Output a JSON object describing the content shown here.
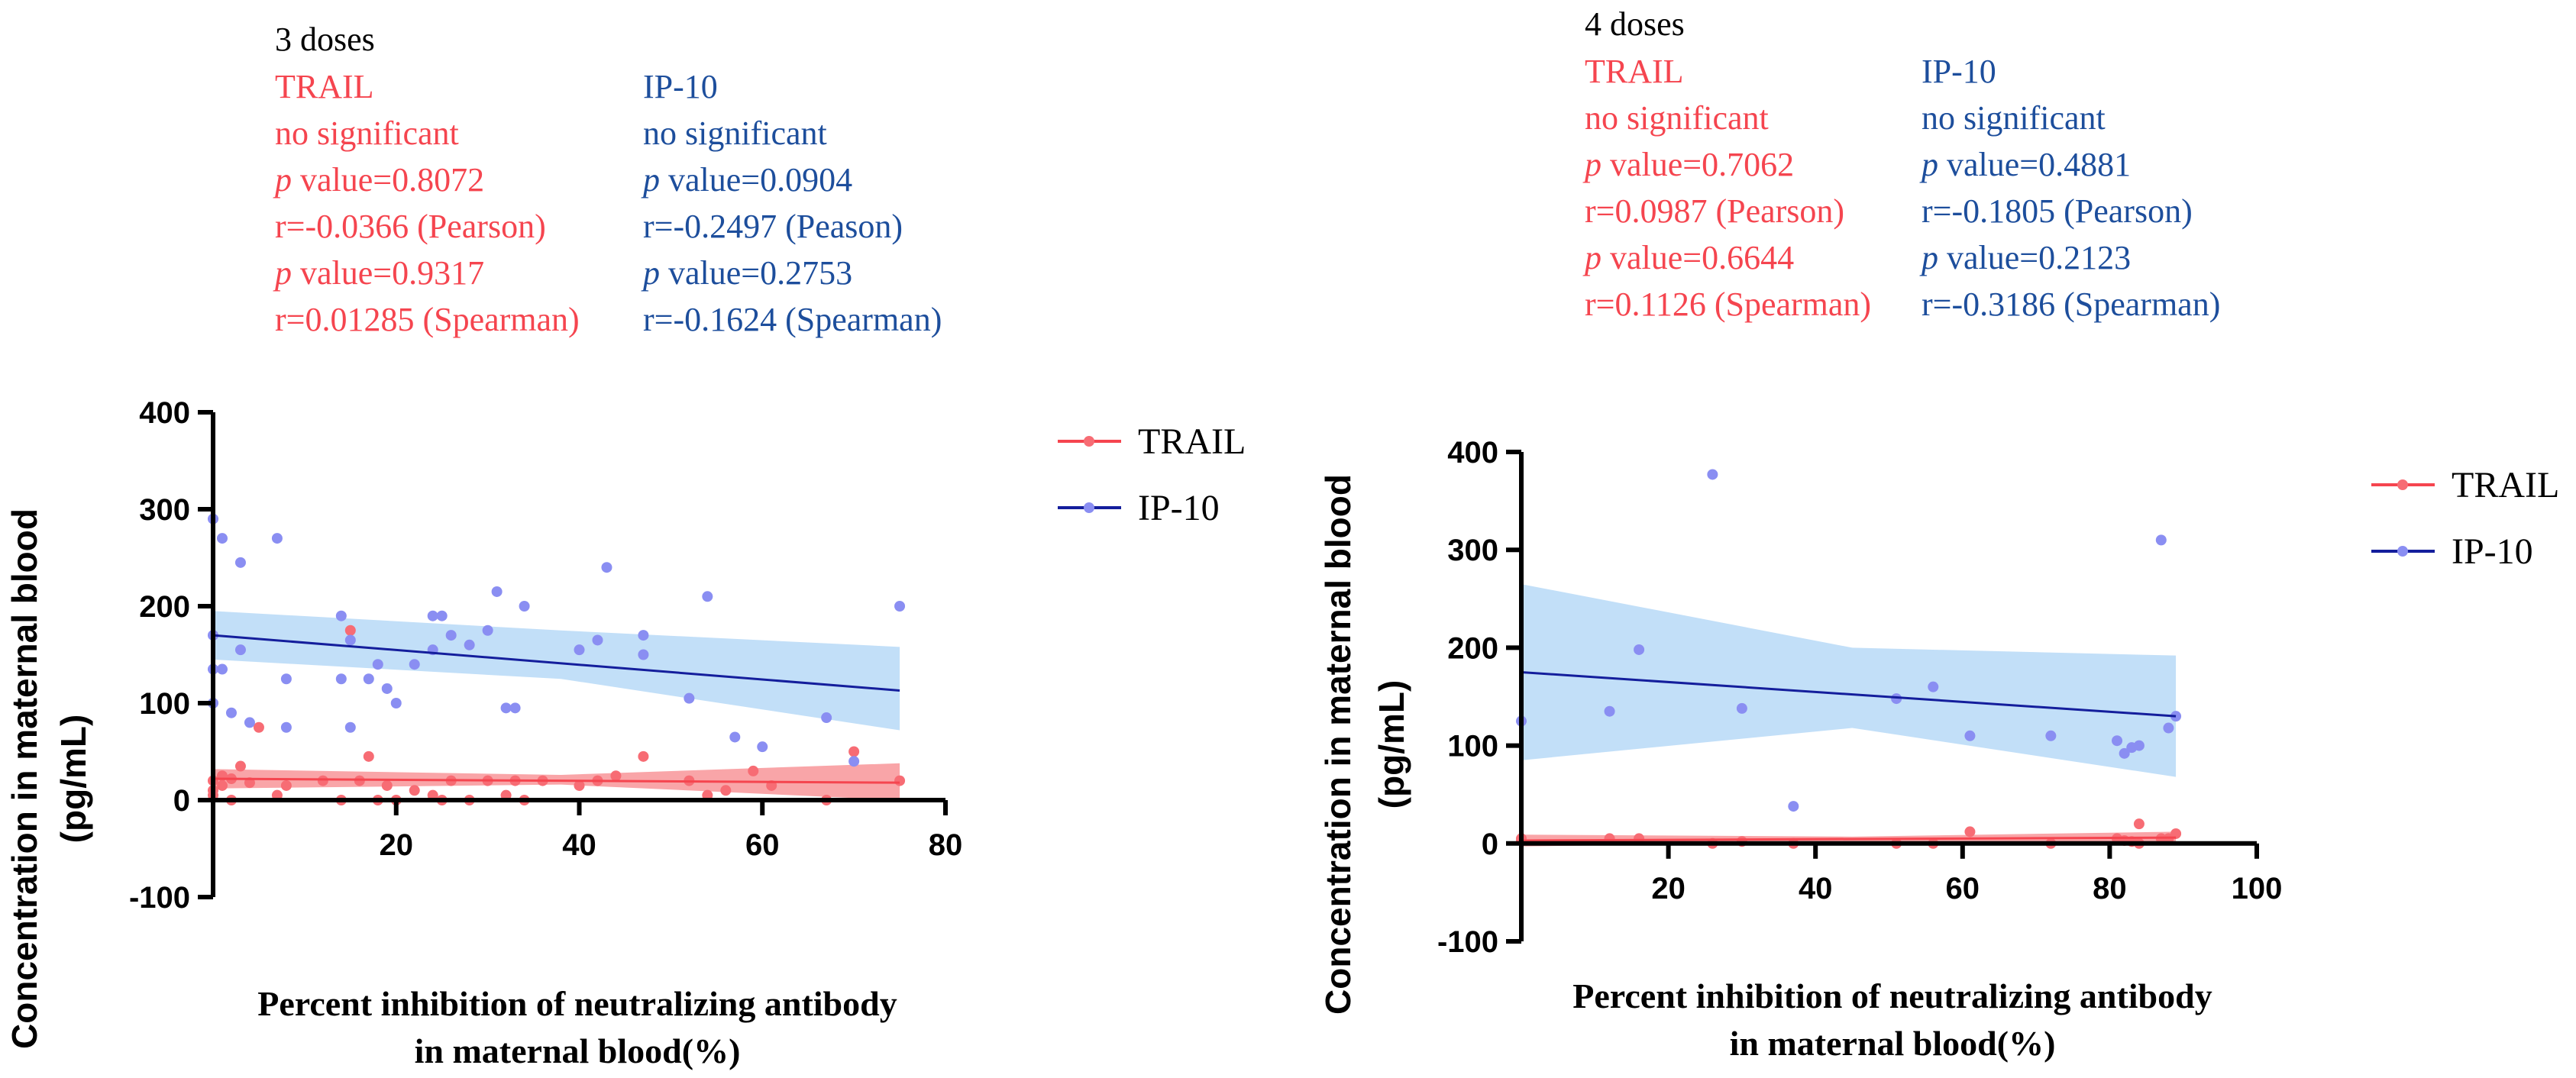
{
  "colors": {
    "trail": "#f5454f",
    "ip10": "#1d4e9c",
    "trail_point": "#f76c74",
    "ip10_point": "#8a8ef2",
    "trail_band": "#f78e92",
    "ip10_band": "#b7d9f7",
    "ip10_line": "#141e9c"
  },
  "legend": {
    "trail": "TRAIL",
    "ip10": "IP-10"
  },
  "chart_data": [
    {
      "type": "scatter",
      "title": "3 doses",
      "ylabel_line1": "Concentration in maternal blood",
      "ylabel_line2": "(pg/mL)",
      "xlabel_line1": "Percent inhibition of neutralizing antibody",
      "xlabel_line2": "in maternal blood(%)",
      "xlim": [
        0,
        80
      ],
      "ylim": [
        -100,
        400
      ],
      "xticks": [
        20,
        40,
        60,
        80
      ],
      "yticks": [
        -100,
        0,
        100,
        200,
        300,
        400
      ],
      "stats": {
        "trail": {
          "name": "TRAIL",
          "significance": "no significant",
          "p_pearson": "value=0.8072",
          "r_pearson": "r=-0.0366 (Pearson)",
          "p_spearman": "value=0.9317",
          "r_spearman": "r=0.01285 (Spearman)"
        },
        "ip10": {
          "name": "IP-10",
          "significance": "no significant",
          "p_pearson": "value=0.0904",
          "r_pearson": "r=-0.2497 (Peason)",
          "p_spearman": "value=0.2753",
          "r_spearman": "r=-0.1624 (Spearman)"
        }
      },
      "series": [
        {
          "name": "TRAIL",
          "points": [
            [
              0,
              20
            ],
            [
              0,
              5
            ],
            [
              0,
              10
            ],
            [
              1,
              15
            ],
            [
              1,
              25
            ],
            [
              2,
              0
            ],
            [
              2,
              22
            ],
            [
              3,
              35
            ],
            [
              4,
              18
            ],
            [
              5,
              75
            ],
            [
              7,
              5
            ],
            [
              8,
              15
            ],
            [
              12,
              20
            ],
            [
              14,
              0
            ],
            [
              15,
              175
            ],
            [
              16,
              20
            ],
            [
              17,
              45
            ],
            [
              18,
              0
            ],
            [
              19,
              15
            ],
            [
              20,
              0
            ],
            [
              22,
              10
            ],
            [
              24,
              5
            ],
            [
              25,
              0
            ],
            [
              26,
              20
            ],
            [
              28,
              0
            ],
            [
              30,
              20
            ],
            [
              32,
              5
            ],
            [
              33,
              20
            ],
            [
              34,
              0
            ],
            [
              36,
              20
            ],
            [
              40,
              15
            ],
            [
              42,
              20
            ],
            [
              44,
              25
            ],
            [
              47,
              45
            ],
            [
              52,
              20
            ],
            [
              54,
              5
            ],
            [
              56,
              10
            ],
            [
              59,
              30
            ],
            [
              61,
              15
            ],
            [
              67,
              0
            ],
            [
              70,
              50
            ],
            [
              75,
              20
            ]
          ],
          "fit": [
            [
              0,
              22
            ],
            [
              75,
              18
            ]
          ],
          "band_upper": [
            [
              0,
              32
            ],
            [
              38,
              26
            ],
            [
              75,
              38
            ]
          ],
          "band_lower": [
            [
              0,
              12
            ],
            [
              38,
              16
            ],
            [
              75,
              0
            ]
          ]
        },
        {
          "name": "IP-10",
          "points": [
            [
              0,
              290
            ],
            [
              0,
              170
            ],
            [
              0,
              135
            ],
            [
              1,
              135
            ],
            [
              0,
              100
            ],
            [
              1,
              270
            ],
            [
              2,
              90
            ],
            [
              3,
              245
            ],
            [
              3,
              155
            ],
            [
              4,
              80
            ],
            [
              7,
              270
            ],
            [
              8,
              125
            ],
            [
              8,
              75
            ],
            [
              14,
              125
            ],
            [
              14,
              190
            ],
            [
              15,
              75
            ],
            [
              15,
              165
            ],
            [
              17,
              125
            ],
            [
              18,
              140
            ],
            [
              19,
              115
            ],
            [
              20,
              100
            ],
            [
              22,
              140
            ],
            [
              24,
              155
            ],
            [
              24,
              190
            ],
            [
              25,
              190
            ],
            [
              26,
              170
            ],
            [
              28,
              160
            ],
            [
              30,
              175
            ],
            [
              31,
              215
            ],
            [
              32,
              95
            ],
            [
              33,
              95
            ],
            [
              34,
              200
            ],
            [
              40,
              155
            ],
            [
              42,
              165
            ],
            [
              43,
              240
            ],
            [
              47,
              170
            ],
            [
              47,
              150
            ],
            [
              52,
              105
            ],
            [
              54,
              210
            ],
            [
              57,
              65
            ],
            [
              60,
              55
            ],
            [
              67,
              85
            ],
            [
              70,
              40
            ],
            [
              75,
              200
            ]
          ],
          "fit": [
            [
              0,
              170
            ],
            [
              75,
              113
            ]
          ],
          "band_upper": [
            [
              0,
              195
            ],
            [
              38,
              175
            ],
            [
              75,
              158
            ]
          ],
          "band_lower": [
            [
              0,
              145
            ],
            [
              38,
              125
            ],
            [
              75,
              72
            ]
          ]
        }
      ]
    },
    {
      "type": "scatter",
      "title": "4 doses",
      "ylabel_line1": "Concentration in maternal blood",
      "ylabel_line2": "(pg/mL)",
      "xlabel_line1": "Percent inhibition of neutralizing antibody",
      "xlabel_line2": "in maternal blood(%)",
      "xlim": [
        0,
        100
      ],
      "ylim": [
        -100,
        400
      ],
      "xticks": [
        20,
        40,
        60,
        80,
        100
      ],
      "yticks": [
        -100,
        0,
        100,
        200,
        300,
        400
      ],
      "stats": {
        "trail": {
          "name": "TRAIL",
          "significance": "no significant",
          "p_pearson": "value=0.7062",
          "r_pearson": "r=0.0987 (Pearson)",
          "p_spearman": "value=0.6644",
          "r_spearman": "r=0.1126 (Spearman)"
        },
        "ip10": {
          "name": "IP-10",
          "significance": "no significant",
          "p_pearson": "value=0.4881",
          "r_pearson": "r=-0.1805 (Pearson)",
          "p_spearman": "value=0.2123",
          "r_spearman": "r=-0.3186 (Spearman)"
        }
      },
      "series": [
        {
          "name": "TRAIL",
          "points": [
            [
              0,
              5
            ],
            [
              0,
              3
            ],
            [
              12,
              5
            ],
            [
              16,
              5
            ],
            [
              26,
              0
            ],
            [
              30,
              2
            ],
            [
              37,
              0
            ],
            [
              51,
              0
            ],
            [
              56,
              0
            ],
            [
              61,
              12
            ],
            [
              72,
              0
            ],
            [
              81,
              5
            ],
            [
              82,
              3
            ],
            [
              83,
              2
            ],
            [
              84,
              20
            ],
            [
              84,
              0
            ],
            [
              87,
              5
            ],
            [
              88,
              5
            ],
            [
              89,
              10
            ]
          ],
          "fit": [
            [
              0,
              3
            ],
            [
              89,
              6
            ]
          ],
          "band_upper": [
            [
              0,
              9
            ],
            [
              45,
              7
            ],
            [
              89,
              12
            ]
          ],
          "band_lower": [
            [
              0,
              -3
            ],
            [
              45,
              1
            ],
            [
              89,
              0
            ]
          ]
        },
        {
          "name": "IP-10",
          "points": [
            [
              0,
              125
            ],
            [
              12,
              135
            ],
            [
              16,
              198
            ],
            [
              26,
              377
            ],
            [
              30,
              138
            ],
            [
              37,
              38
            ],
            [
              51,
              148
            ],
            [
              56,
              160
            ],
            [
              61,
              110
            ],
            [
              72,
              110
            ],
            [
              81,
              105
            ],
            [
              82,
              92
            ],
            [
              83,
              98
            ],
            [
              84,
              100
            ],
            [
              87,
              310
            ],
            [
              88,
              118
            ],
            [
              89,
              130
            ]
          ],
          "fit": [
            [
              0,
              175
            ],
            [
              89,
              130
            ]
          ],
          "band_upper": [
            [
              0,
              265
            ],
            [
              45,
              200
            ],
            [
              89,
              192
            ]
          ],
          "band_lower": [
            [
              0,
              85
            ],
            [
              45,
              118
            ],
            [
              89,
              68
            ]
          ]
        }
      ]
    }
  ]
}
